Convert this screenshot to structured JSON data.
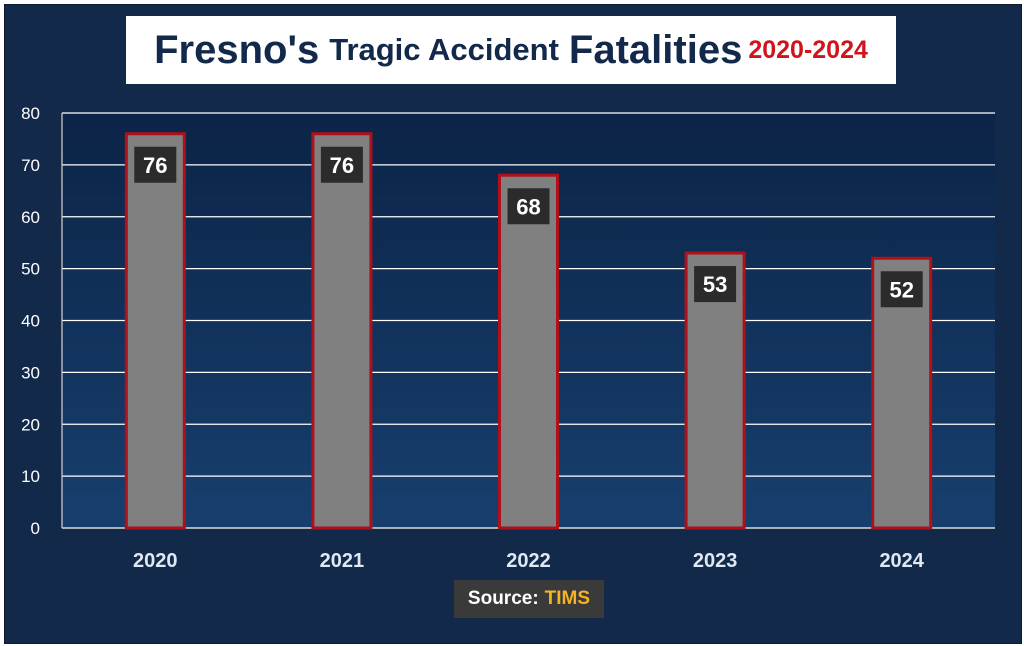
{
  "title": {
    "part1": "Fresno's",
    "part2": "Tragic Accident",
    "part3": "Fatalities",
    "years": "2020-2024"
  },
  "source": {
    "label": "Source:",
    "value": "TIMS"
  },
  "colors": {
    "background": "#12294a",
    "bar_fill": "#808080",
    "bar_border": "#b0101a",
    "label_box": "#2b2b2b",
    "gridline": "#ffffff",
    "title_dark": "#13294b",
    "title_red": "#d0141d",
    "source_accent": "#f5b324"
  },
  "chart_data": {
    "type": "bar",
    "categories": [
      "2020",
      "2021",
      "2022",
      "2023",
      "2024"
    ],
    "values": [
      76,
      76,
      68,
      53,
      52
    ],
    "data_labels": [
      "76",
      "76",
      "68",
      "53",
      "52"
    ],
    "title": "Fresno's Tragic Accident Fatalities 2020-2024",
    "xlabel": "",
    "ylabel": "",
    "ylim": [
      0,
      80
    ],
    "yticks": [
      0,
      10,
      20,
      30,
      40,
      50,
      60,
      70,
      80
    ],
    "grid": true,
    "legend": "none"
  }
}
